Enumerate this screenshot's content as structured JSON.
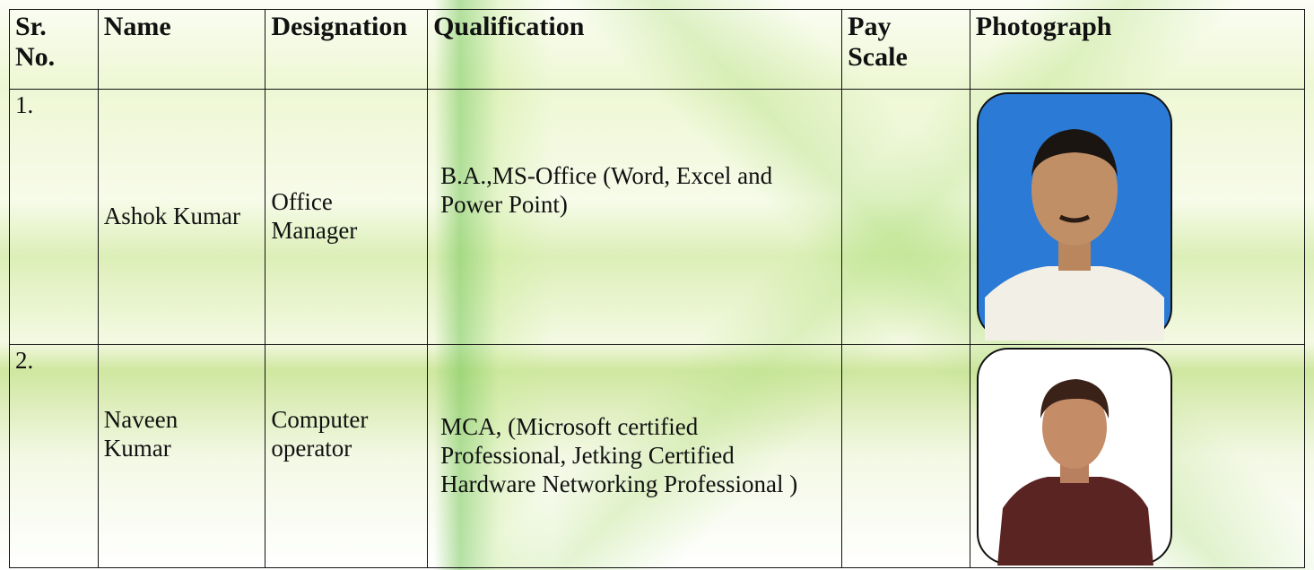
{
  "table": {
    "header": [
      "Sr. No.",
      "Name",
      "Designation",
      "Qualification",
      "Pay Scale",
      "Photograph"
    ],
    "rows": [
      [
        "1.",
        "Ashok Kumar",
        "Office Manager",
        "B.A.,MS-Office (Word, Excel and Power Point)"
      ],
      [
        "2.",
        "Naveen Kumar",
        "Computer operator",
        "MCA, (Microsoft certified Professional, Jetking Certified Hardware Networking Professional )"
      ]
    ]
  }
}
